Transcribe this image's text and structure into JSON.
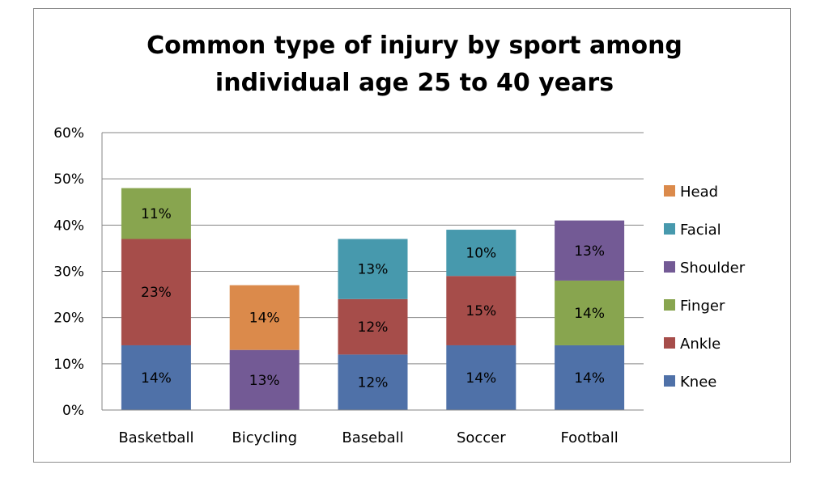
{
  "chart_data": {
    "type": "bar",
    "stacked": true,
    "title_lines": [
      "Common type of injury by sport among",
      "individual age 25 to 40 years"
    ],
    "categories": [
      "Basketball",
      "Bicycling",
      "Baseball",
      "Soccer",
      "Football"
    ],
    "y_unit": "%",
    "ylim": [
      0,
      60
    ],
    "y_ticks": [
      0,
      10,
      20,
      30,
      40,
      50,
      60
    ],
    "y_tick_labels": [
      "0%",
      "10%",
      "20%",
      "30%",
      "40%",
      "50%",
      "60%"
    ],
    "grid": "horizontal",
    "legend_position": "right",
    "legend_order": [
      "Head",
      "Facial",
      "Shoulder",
      "Finger",
      "Ankle",
      "Knee"
    ],
    "series": [
      {
        "name": "Knee",
        "color": "#4f71a8",
        "values": [
          14,
          null,
          12,
          14,
          14
        ],
        "labels": [
          "14%",
          "",
          "12%",
          "14%",
          "14%"
        ]
      },
      {
        "name": "Ankle",
        "color": "#a64d4a",
        "values": [
          23,
          null,
          12,
          15,
          null
        ],
        "labels": [
          "23%",
          "",
          "12%",
          "15%",
          ""
        ]
      },
      {
        "name": "Finger",
        "color": "#88a54f",
        "values": [
          11,
          null,
          null,
          null,
          14
        ],
        "labels": [
          "11%",
          "",
          "",
          "",
          "14%"
        ]
      },
      {
        "name": "Shoulder",
        "color": "#735a95",
        "values": [
          null,
          13,
          null,
          null,
          13
        ],
        "labels": [
          "",
          "13%",
          "",
          "",
          "13%"
        ]
      },
      {
        "name": "Facial",
        "color": "#4799ad",
        "values": [
          null,
          null,
          13,
          10,
          null
        ],
        "labels": [
          "",
          "",
          "13%",
          "10%",
          ""
        ]
      },
      {
        "name": "Head",
        "color": "#db8a4b",
        "values": [
          null,
          14,
          null,
          null,
          null
        ],
        "labels": [
          "",
          "14%",
          "",
          "",
          ""
        ]
      }
    ],
    "stack_order": [
      [
        "Knee",
        "Ankle",
        "Finger"
      ],
      [
        "Shoulder",
        "Head"
      ],
      [
        "Knee",
        "Ankle",
        "Facial"
      ],
      [
        "Knee",
        "Ankle",
        "Facial"
      ],
      [
        "Knee",
        "Finger",
        "Shoulder"
      ]
    ]
  }
}
